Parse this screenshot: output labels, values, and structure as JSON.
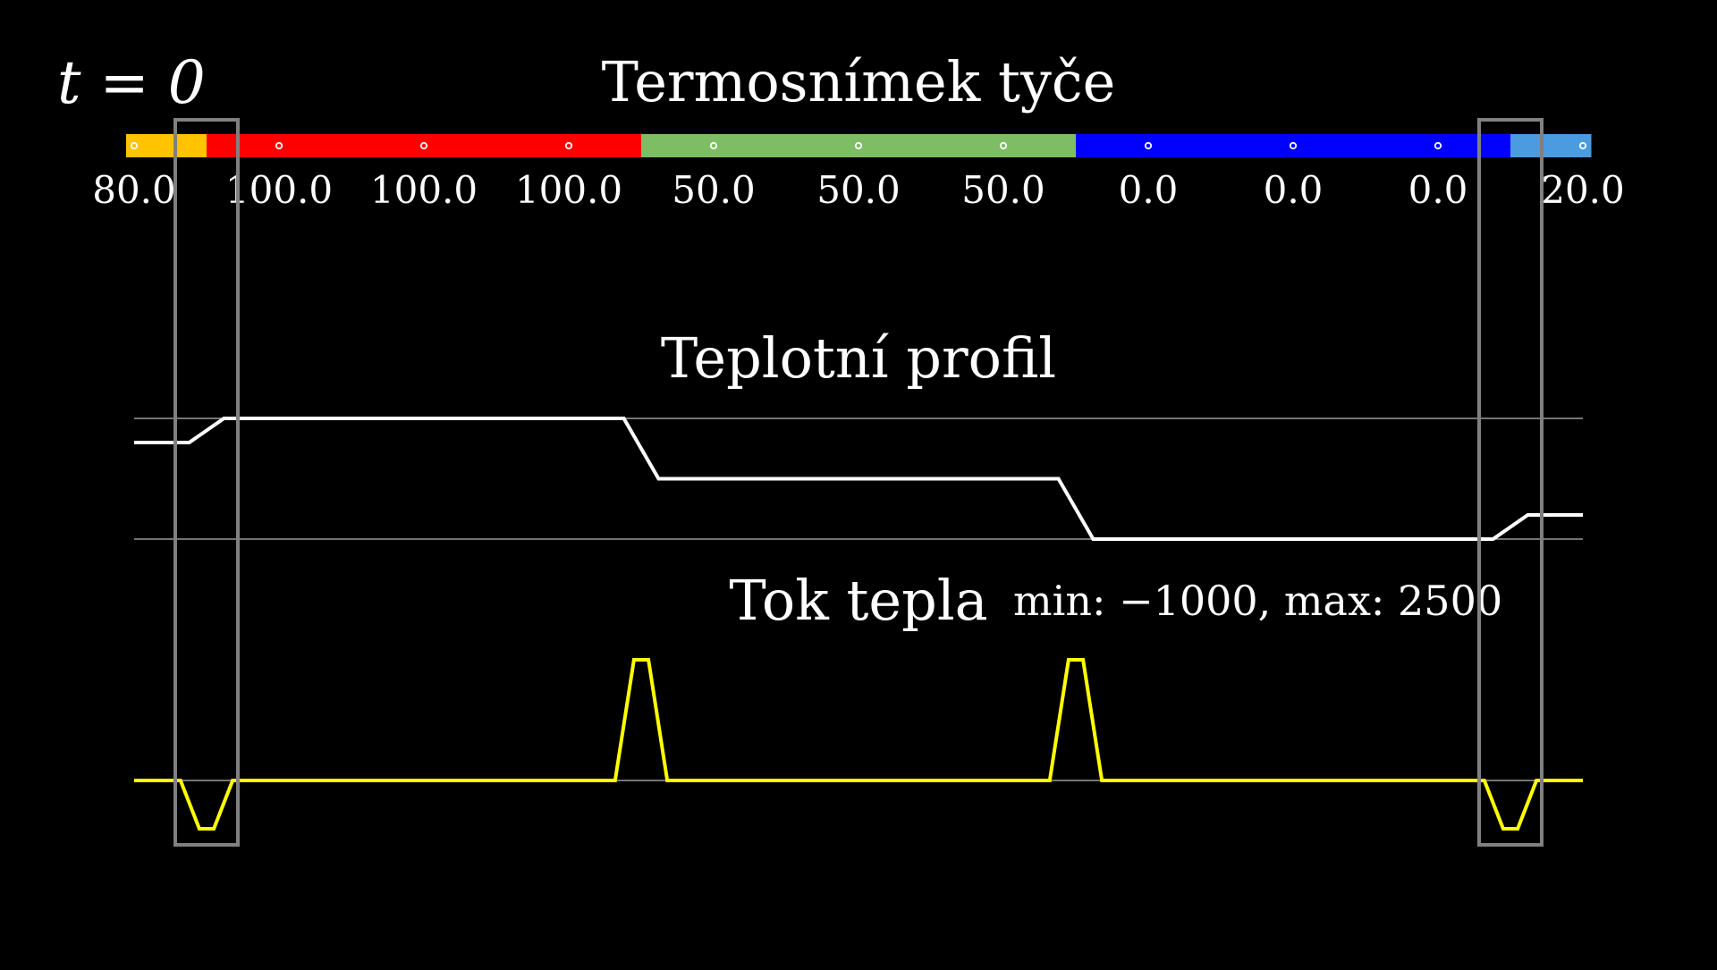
{
  "time_label": "t = 0",
  "thermal_image": {
    "title": "Termosnímek tyče",
    "cells": [
      {
        "value": "80.0",
        "color": "#FFC300"
      },
      {
        "value": "100.0",
        "color": "#FF0000"
      },
      {
        "value": "100.0",
        "color": "#FF0000"
      },
      {
        "value": "100.0",
        "color": "#FF0000"
      },
      {
        "value": "50.0",
        "color": "#7DBE65"
      },
      {
        "value": "50.0",
        "color": "#7DBE65"
      },
      {
        "value": "50.0",
        "color": "#7DBE65"
      },
      {
        "value": "0.0",
        "color": "#0000FF"
      },
      {
        "value": "0.0",
        "color": "#0000FF"
      },
      {
        "value": "0.0",
        "color": "#0000FF"
      },
      {
        "value": "20.0",
        "color": "#4A9BE0"
      }
    ]
  },
  "temperature_profile": {
    "title": "Teplotní profil",
    "reference_levels": [
      100,
      0
    ],
    "line_color": "#FFFFFF"
  },
  "heat_flux": {
    "title": "Tok tepla",
    "minmax_label": "min: −1000, max: 2500",
    "min": -1000,
    "max": 2500,
    "peaks": [
      -1000,
      2500,
      2500,
      -1000
    ],
    "line_color": "#FFFF00"
  },
  "highlight_boxes": {
    "color": "#808080",
    "cells": [
      0,
      10
    ]
  }
}
